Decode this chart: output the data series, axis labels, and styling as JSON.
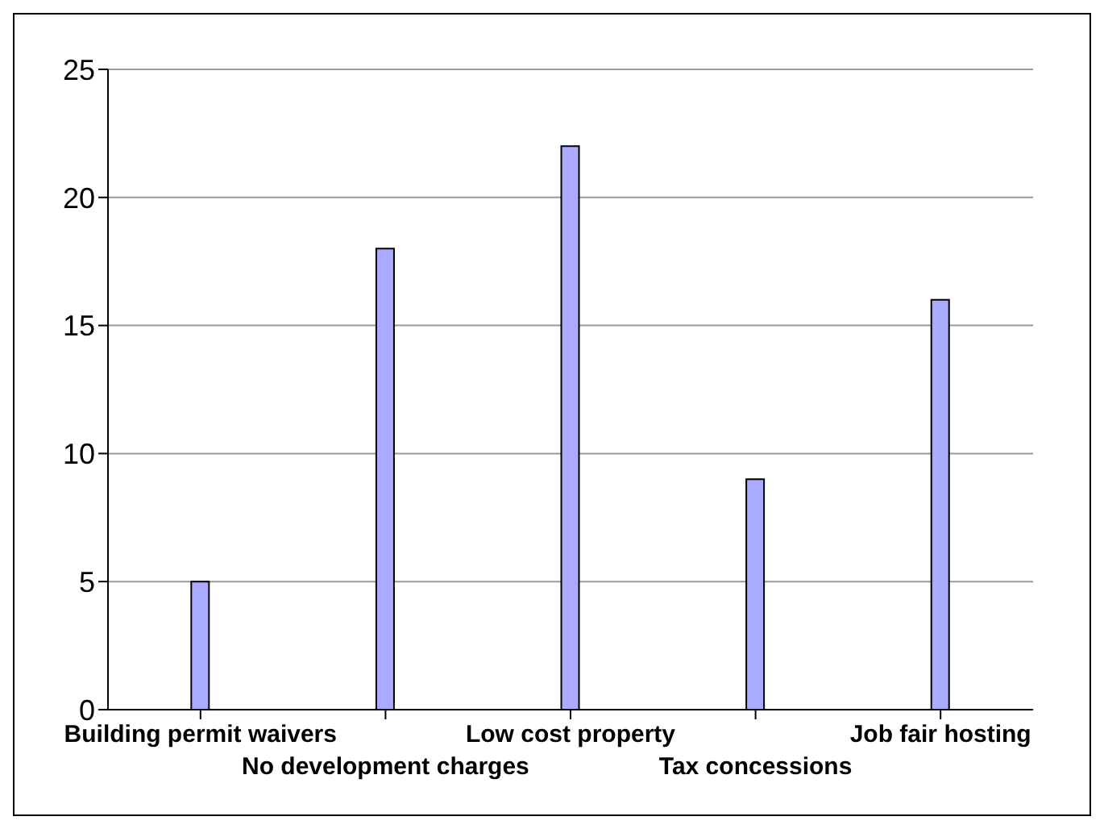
{
  "chart_data": {
    "type": "bar",
    "categories": [
      "Building permit waivers",
      "No development charges",
      "Low cost property",
      "Tax concessions",
      "Job fair hosting"
    ],
    "values": [
      5,
      18,
      22,
      9,
      16
    ],
    "color": "#aaaaff",
    "ylim": [
      0,
      25
    ],
    "yticks": [
      0,
      5,
      10,
      15,
      20,
      25
    ],
    "grid": "y"
  }
}
